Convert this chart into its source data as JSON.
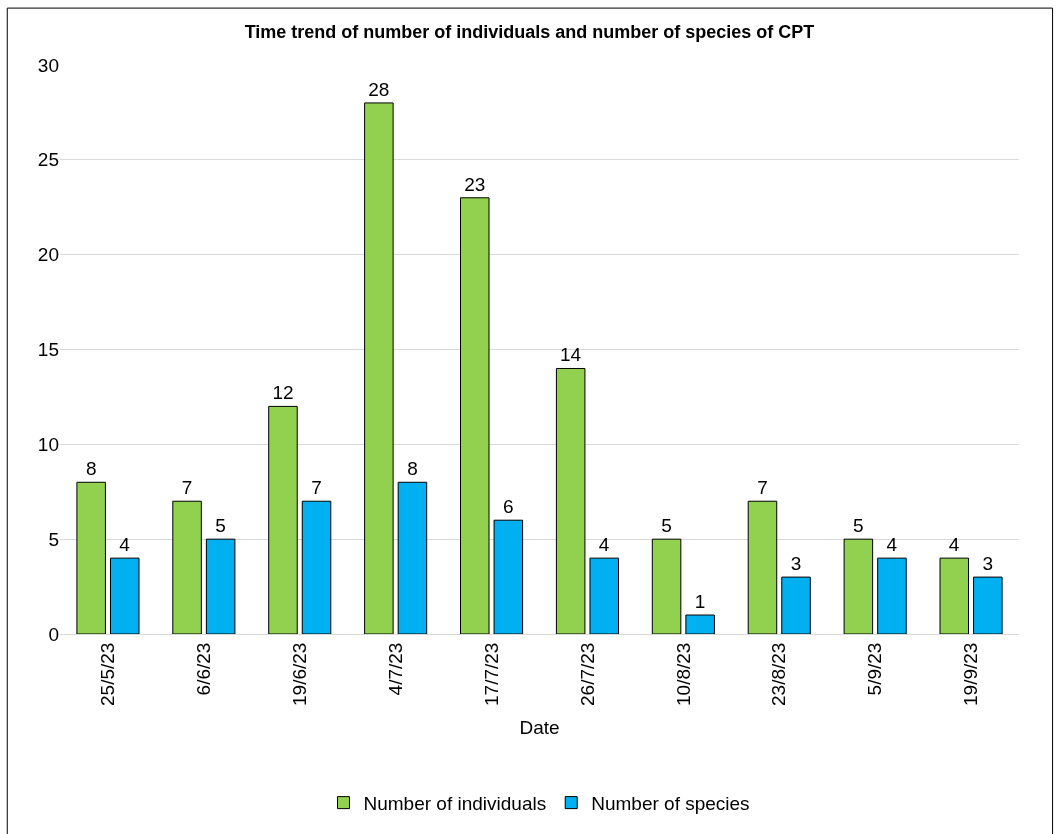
{
  "chart_data": {
    "type": "bar",
    "title": "Time trend of number of individuals and number of species of CPT",
    "xlabel": "Date",
    "categories": [
      "25/5/23",
      "6/6/23",
      "19/6/23",
      "4/7/23",
      "17/7/23",
      "26/7/23",
      "10/8/23",
      "23/8/23",
      "5/9/23",
      "19/9/23"
    ],
    "series": [
      {
        "name": "Number of individuals",
        "color": "#92d050",
        "values": [
          8,
          7,
          12,
          28,
          23,
          14,
          5,
          7,
          5,
          4
        ]
      },
      {
        "name": "Number of species",
        "color": "#00b0f0",
        "values": [
          4,
          5,
          7,
          8,
          6,
          4,
          1,
          3,
          4,
          3
        ]
      }
    ],
    "ylim": [
      0,
      30
    ],
    "yticks": [
      0,
      5,
      10,
      15,
      20,
      25,
      30
    ],
    "grid": "y",
    "legend": "bottom",
    "data_labels": true
  }
}
